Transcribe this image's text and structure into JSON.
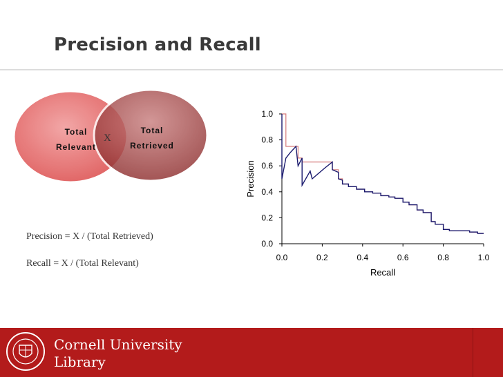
{
  "slide": {
    "title": "Precision and Recall"
  },
  "venn": {
    "left_label": "Total\nRelevant",
    "right_label": "Total\nRetrieved",
    "intersection_label": "X",
    "left_color": "#e46a6a",
    "right_color": "#9e3c3c"
  },
  "formulas": {
    "precision": "Precision = X / (Total Retrieved)",
    "recall": "Recall = X / (Total Relevant)"
  },
  "chart_data": {
    "type": "line",
    "xlabel": "Recall",
    "ylabel": "Precision",
    "xlim": [
      0,
      1
    ],
    "ylim": [
      0,
      1
    ],
    "xticks": [
      "0.0",
      "0.2",
      "0.4",
      "0.6",
      "0.8",
      "1.0"
    ],
    "yticks": [
      "0.0",
      "0.2",
      "0.4",
      "0.6",
      "0.8",
      "1.0"
    ],
    "grid": false,
    "series": [
      {
        "color": "#1a1a6e",
        "x": [
          0.0,
          0.0,
          0.02,
          0.04,
          0.07,
          0.08,
          0.1,
          0.1,
          0.14,
          0.15,
          0.21,
          0.25,
          0.25,
          0.28,
          0.28,
          0.3,
          0.3,
          0.33,
          0.33,
          0.37,
          0.37,
          0.41,
          0.41,
          0.45,
          0.45,
          0.49,
          0.49,
          0.53,
          0.53,
          0.56,
          0.56,
          0.6,
          0.6,
          0.63,
          0.63,
          0.67,
          0.67,
          0.7,
          0.7,
          0.74,
          0.74,
          0.76,
          0.76,
          0.8,
          0.8,
          0.83,
          0.83,
          0.87,
          0.87,
          0.93,
          0.93,
          0.97,
          0.97,
          1.0
        ],
        "y": [
          1.0,
          0.5,
          0.66,
          0.7,
          0.75,
          0.6,
          0.66,
          0.45,
          0.56,
          0.5,
          0.58,
          0.63,
          0.57,
          0.55,
          0.5,
          0.49,
          0.46,
          0.46,
          0.44,
          0.44,
          0.42,
          0.42,
          0.4,
          0.4,
          0.39,
          0.39,
          0.37,
          0.37,
          0.36,
          0.36,
          0.35,
          0.35,
          0.32,
          0.32,
          0.3,
          0.3,
          0.26,
          0.26,
          0.24,
          0.24,
          0.17,
          0.17,
          0.15,
          0.15,
          0.11,
          0.11,
          0.1,
          0.1,
          0.1,
          0.1,
          0.09,
          0.09,
          0.08,
          0.08
        ]
      },
      {
        "color": "#d67b7b",
        "x": [
          0.0,
          0.02,
          0.02,
          0.08,
          0.08,
          0.1,
          0.1,
          0.25,
          0.25,
          0.28,
          0.28,
          0.3,
          0.3,
          0.33,
          0.33,
          0.37,
          0.37,
          0.41,
          0.41,
          0.45,
          0.45,
          0.49,
          0.49,
          0.53,
          0.53,
          0.56,
          0.56,
          0.6,
          0.6,
          0.63,
          0.63,
          0.67,
          0.67,
          0.7,
          0.7,
          0.74,
          0.74,
          0.76,
          0.76,
          0.8,
          0.8,
          0.83,
          0.83,
          0.87,
          0.87,
          0.93,
          0.93,
          0.97,
          0.97,
          1.0
        ],
        "y": [
          1.0,
          1.0,
          0.75,
          0.75,
          0.66,
          0.66,
          0.63,
          0.63,
          0.57,
          0.57,
          0.5,
          0.5,
          0.46,
          0.46,
          0.44,
          0.44,
          0.42,
          0.42,
          0.4,
          0.4,
          0.39,
          0.39,
          0.37,
          0.37,
          0.36,
          0.36,
          0.35,
          0.35,
          0.32,
          0.32,
          0.3,
          0.3,
          0.26,
          0.26,
          0.24,
          0.24,
          0.17,
          0.17,
          0.15,
          0.15,
          0.11,
          0.11,
          0.1,
          0.1,
          0.1,
          0.1,
          0.09,
          0.09,
          0.08,
          0.08
        ]
      }
    ]
  },
  "footer": {
    "brand_line1": "Cornell University",
    "brand_line2": "Library",
    "seal_text": "CORNELL UNIVERSITY",
    "color": "#b31b1b"
  }
}
